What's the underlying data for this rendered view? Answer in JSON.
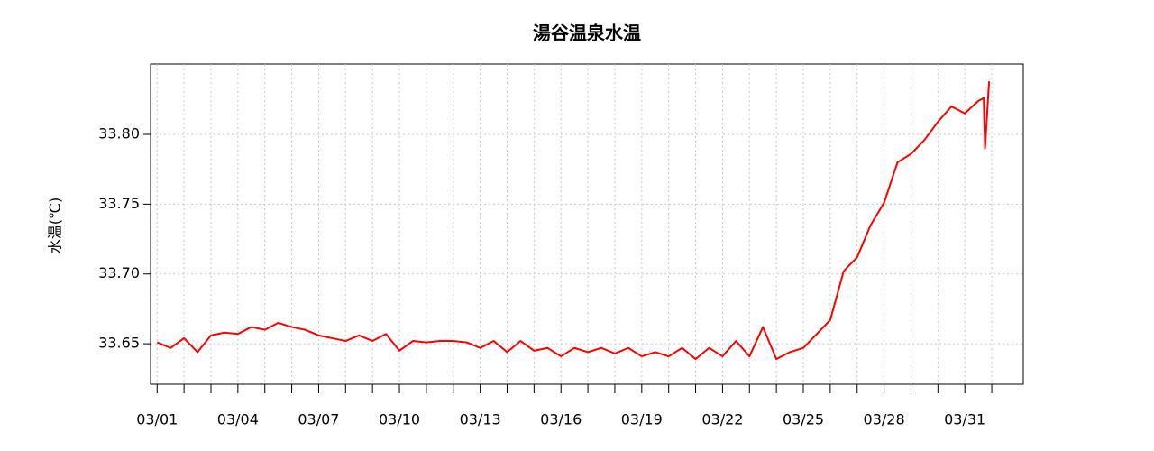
{
  "chart_data": {
    "type": "line",
    "title": "湯谷温泉水温",
    "y_label": "水温(℃)",
    "x": [
      1,
      1.5,
      2,
      2.5,
      3,
      3.5,
      4,
      4.5,
      5,
      5.5,
      6,
      6.5,
      7,
      7.5,
      8,
      8.5,
      9,
      9.5,
      10,
      10.5,
      11,
      11.5,
      12,
      12.5,
      13,
      13.5,
      14,
      14.5,
      15,
      15.5,
      16,
      16.5,
      17,
      17.5,
      18,
      18.5,
      19,
      19.5,
      20,
      20.5,
      21,
      21.5,
      22,
      22.5,
      23,
      23.5,
      24,
      24.5,
      25,
      25.5,
      26,
      26.5,
      27,
      27.5,
      28,
      28.5,
      29,
      29.5,
      30,
      30.5,
      31,
      31.5,
      31.7,
      31.75,
      31.9
    ],
    "series": [
      {
        "color": "#ff0000",
        "values": [
          33.651,
          33.647,
          33.654,
          33.644,
          33.656,
          33.658,
          33.657,
          33.662,
          33.66,
          33.665,
          33.662,
          33.66,
          33.656,
          33.654,
          33.652,
          33.656,
          33.652,
          33.657,
          33.645,
          33.652,
          33.651,
          33.652,
          33.652,
          33.651,
          33.647,
          33.652,
          33.644,
          33.652,
          33.645,
          33.647,
          33.641,
          33.647,
          33.644,
          33.647,
          33.643,
          33.647,
          33.641,
          33.644,
          33.641,
          33.647,
          33.639,
          33.647,
          33.641,
          33.652,
          33.641,
          33.662,
          33.639,
          33.644,
          33.647,
          33.657,
          33.667,
          33.702,
          33.712,
          33.735,
          33.751,
          33.78,
          33.786,
          33.796,
          33.809,
          33.82,
          33.815,
          33.824,
          33.826,
          33.79,
          33.838
        ]
      }
    ],
    "xlim": [
      0.757,
      33.17
    ],
    "ylim": [
      33.621,
      33.8504
    ],
    "xticks": [
      {
        "value": 1,
        "label": "03/01"
      },
      {
        "value": 4,
        "label": "03/04"
      },
      {
        "value": 7,
        "label": "03/07"
      },
      {
        "value": 10,
        "label": "03/10"
      },
      {
        "value": 13,
        "label": "03/13"
      },
      {
        "value": 16,
        "label": "03/16"
      },
      {
        "value": 19,
        "label": "03/19"
      },
      {
        "value": 22,
        "label": "03/22"
      },
      {
        "value": 25,
        "label": "03/25"
      },
      {
        "value": 28,
        "label": "03/28"
      },
      {
        "value": 31,
        "label": "03/31"
      }
    ],
    "xminorticks": [
      1,
      2,
      3,
      4,
      5,
      6,
      7,
      8,
      9,
      10,
      11,
      12,
      13,
      14,
      15,
      16,
      17,
      18,
      19,
      20,
      21,
      22,
      23,
      24,
      25,
      26,
      27,
      28,
      29,
      30,
      31,
      32
    ],
    "yticks": [
      {
        "value": 33.65,
        "label": "33.65"
      },
      {
        "value": 33.7,
        "label": "33.70"
      },
      {
        "value": 33.75,
        "label": "33.75"
      },
      {
        "value": 33.8,
        "label": "33.80"
      }
    ],
    "grid": true
  }
}
